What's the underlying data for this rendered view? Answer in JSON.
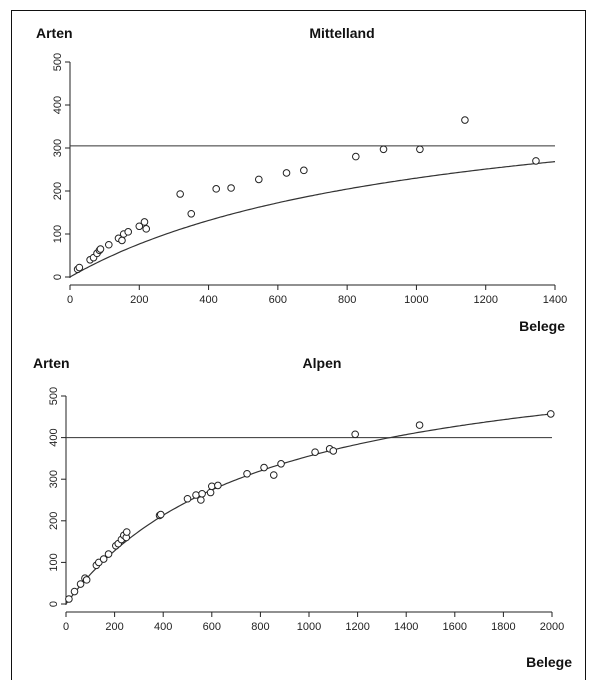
{
  "chart_data": [
    {
      "type": "scatter",
      "title": "Mittelland",
      "ylabel": "Arten",
      "xlabel": "Belege",
      "xlim": [
        0,
        1400
      ],
      "ylim": [
        0,
        500
      ],
      "xticks": [
        0,
        200,
        400,
        600,
        800,
        1000,
        1200,
        1400
      ],
      "yticks": [
        0,
        100,
        200,
        300,
        400,
        500
      ],
      "reference_line": 305,
      "fit_curve": {
        "a": 460,
        "b": 1000
      },
      "points": [
        [
          22,
          18
        ],
        [
          27,
          22
        ],
        [
          58,
          40
        ],
        [
          68,
          45
        ],
        [
          78,
          55
        ],
        [
          85,
          62
        ],
        [
          88,
          65
        ],
        [
          112,
          75
        ],
        [
          140,
          90
        ],
        [
          150,
          85
        ],
        [
          155,
          100
        ],
        [
          168,
          105
        ],
        [
          200,
          118
        ],
        [
          215,
          128
        ],
        [
          220,
          112
        ],
        [
          318,
          193
        ],
        [
          350,
          147
        ],
        [
          422,
          205
        ],
        [
          465,
          207
        ],
        [
          545,
          227
        ],
        [
          625,
          242
        ],
        [
          675,
          248
        ],
        [
          825,
          280
        ],
        [
          905,
          297
        ],
        [
          1010,
          297
        ],
        [
          1140,
          365
        ],
        [
          1345,
          270
        ]
      ]
    },
    {
      "type": "scatter",
      "title": "Alpen",
      "ylabel": "Arten",
      "xlabel": "Belege",
      "xlim": [
        0,
        2000
      ],
      "ylim": [
        0,
        500
      ],
      "xticks": [
        0,
        200,
        400,
        600,
        800,
        1000,
        1200,
        1400,
        1600,
        1800,
        2000
      ],
      "yticks": [
        0,
        100,
        200,
        300,
        400,
        500
      ],
      "reference_line": 400,
      "fit_curve": {
        "a": 640,
        "b": 800
      },
      "points": [
        [
          12,
          12
        ],
        [
          35,
          30
        ],
        [
          60,
          48
        ],
        [
          78,
          62
        ],
        [
          85,
          58
        ],
        [
          125,
          93
        ],
        [
          135,
          100
        ],
        [
          155,
          108
        ],
        [
          175,
          120
        ],
        [
          205,
          140
        ],
        [
          215,
          145
        ],
        [
          228,
          155
        ],
        [
          238,
          165
        ],
        [
          248,
          160
        ],
        [
          250,
          173
        ],
        [
          385,
          213
        ],
        [
          390,
          215
        ],
        [
          500,
          253
        ],
        [
          535,
          262
        ],
        [
          555,
          250
        ],
        [
          560,
          265
        ],
        [
          595,
          268
        ],
        [
          600,
          283
        ],
        [
          625,
          285
        ],
        [
          745,
          313
        ],
        [
          815,
          328
        ],
        [
          855,
          310
        ],
        [
          885,
          337
        ],
        [
          1025,
          365
        ],
        [
          1085,
          373
        ],
        [
          1100,
          368
        ],
        [
          1190,
          408
        ],
        [
          1455,
          430
        ],
        [
          1995,
          457
        ]
      ]
    }
  ]
}
